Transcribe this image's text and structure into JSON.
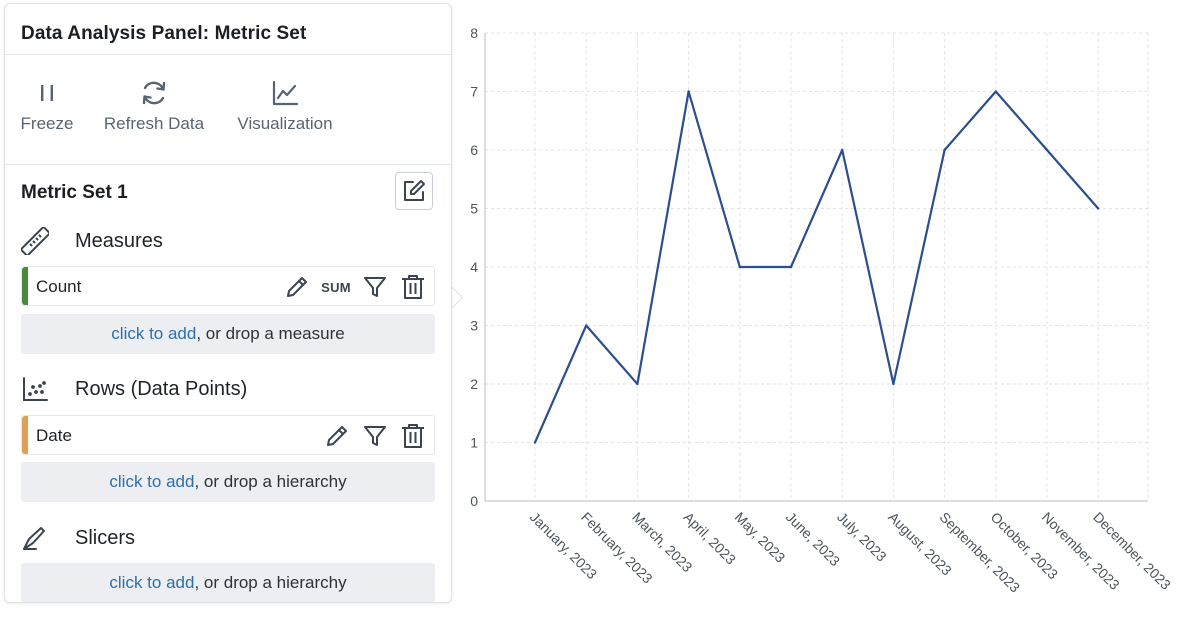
{
  "panel": {
    "title": "Data Analysis Panel: Metric Set",
    "toolbar": [
      {
        "label": "Freeze",
        "icon": "pause-icon"
      },
      {
        "label": "Refresh Data",
        "icon": "refresh-icon"
      },
      {
        "label": "Visualization",
        "icon": "line-chart-icon"
      }
    ],
    "metric_set": {
      "title": "Metric Set 1",
      "measures": {
        "label": "Measures",
        "fields": [
          {
            "name": "Count",
            "aggregation": "SUM",
            "color": "#4a8a3a"
          }
        ],
        "drop": {
          "link": "click to add",
          "rest": ", or drop a measure"
        }
      },
      "rows": {
        "label": "Rows (Data Points)",
        "fields": [
          {
            "name": "Date",
            "color": "#e0a052"
          }
        ],
        "drop": {
          "link": "click to add",
          "rest": ", or drop a hierarchy"
        }
      },
      "slicers": {
        "label": "Slicers",
        "drop": {
          "link": "click to add",
          "rest": ", or drop a hierarchy"
        }
      }
    }
  },
  "chart_data": {
    "type": "line",
    "categories": [
      "January, 2023",
      "February, 2023",
      "March, 2023",
      "April, 2023",
      "May, 2023",
      "June, 2023",
      "July, 2023",
      "August, 2023",
      "September, 2023",
      "October, 2023",
      "November, 2023",
      "December, 2023"
    ],
    "series": [
      {
        "values": [
          1,
          3,
          2,
          7,
          4,
          4,
          6,
          2,
          6,
          7,
          6,
          5
        ],
        "color": "#2b4f8e"
      }
    ],
    "yticks": [
      "0",
      "1",
      "2",
      "3",
      "4",
      "5",
      "6",
      "7",
      "8"
    ],
    "ylim": [
      0,
      8
    ],
    "grid": true
  }
}
